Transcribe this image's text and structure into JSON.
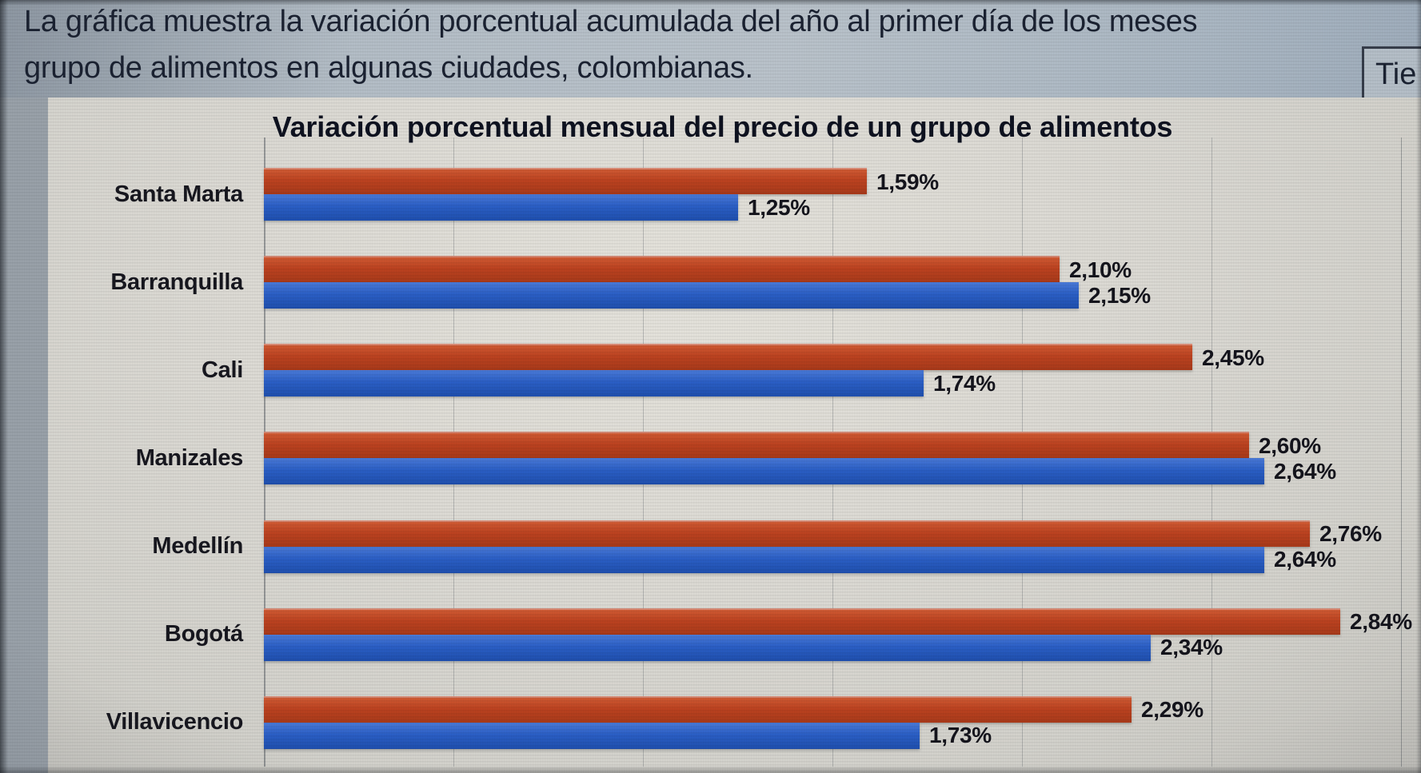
{
  "banner": {
    "line1": "La gráfica muestra la variación porcentual acumulada del año al primer día de los meses",
    "line2": "grupo de alimentos en algunas ciudades, colombianas.",
    "corner_box_label": "Tie"
  },
  "chart_data": {
    "type": "bar",
    "orientation": "horizontal",
    "title": "Variación porcentual  mensual del precio de un grupo de alimentos",
    "categories": [
      "Santa Marta",
      "Barranquilla",
      "Cali",
      "Manizales",
      "Medellín",
      "Bogotá",
      "Villavicencio"
    ],
    "series": [
      {
        "name": "series-red",
        "color": "#bc4220",
        "values": [
          1.59,
          2.1,
          2.45,
          2.6,
          2.76,
          2.84,
          2.29
        ],
        "labels": [
          "1,59%",
          "2,10%",
          "2,45%",
          "2,60%",
          "2,76%",
          "2,84%",
          "2,29%"
        ]
      },
      {
        "name": "series-blue",
        "color": "#2b5fc6",
        "values": [
          1.25,
          2.15,
          1.74,
          2.64,
          2.64,
          2.34,
          1.73
        ],
        "labels": [
          "1,25%",
          "2,15%",
          "1,74%",
          "2,64%",
          "2,64%",
          "2,34%",
          "1,73%"
        ]
      }
    ],
    "xlim": [
      0,
      3
    ],
    "gridline_step": 0.5,
    "grid": true,
    "legend": "none",
    "value_labels": "outside-end",
    "decimal_separator": ","
  },
  "colors": {
    "page_bg": "#99a1a9",
    "banner_bg": "#b4bec7",
    "panel_bg": "#dddbd5",
    "bar_red": "#bc4220",
    "bar_blue": "#2b5fc6",
    "text_dark": "#1b2232",
    "grid_line": "#5c626a"
  }
}
